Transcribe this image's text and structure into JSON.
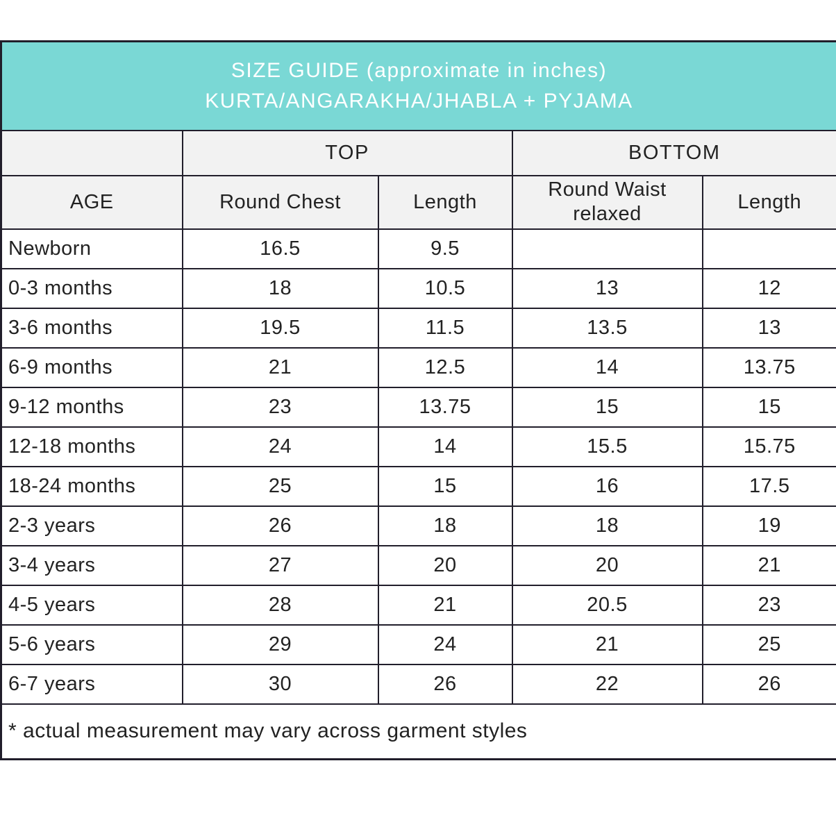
{
  "colors": {
    "header_teal": "#7ad8d5",
    "header_gray": "#f2f2f2",
    "border": "#211e2b",
    "title_text": "#ffffff",
    "body_text": "#222222"
  },
  "table": {
    "title_line1": "SIZE GUIDE (approximate in inches)",
    "title_line2": "KURTA/ANGARAKHA/JHABLA + PYJAMA",
    "group_headers": {
      "top": "TOP",
      "bottom": "BOTTOM"
    },
    "column_headers": {
      "age": "AGE",
      "round_chest": "Round Chest",
      "top_length": "Length",
      "round_waist": "Round Waist relaxed",
      "bottom_length": "Length"
    },
    "rows": [
      {
        "age": "Newborn",
        "round_chest": "16.5",
        "top_length": "9.5",
        "round_waist": "",
        "bottom_length": ""
      },
      {
        "age": "0-3 months",
        "round_chest": "18",
        "top_length": "10.5",
        "round_waist": "13",
        "bottom_length": "12"
      },
      {
        "age": "3-6 months",
        "round_chest": "19.5",
        "top_length": "11.5",
        "round_waist": "13.5",
        "bottom_length": "13"
      },
      {
        "age": "6-9 months",
        "round_chest": "21",
        "top_length": "12.5",
        "round_waist": "14",
        "bottom_length": "13.75"
      },
      {
        "age": "9-12 months",
        "round_chest": "23",
        "top_length": "13.75",
        "round_waist": "15",
        "bottom_length": "15"
      },
      {
        "age": "12-18 months",
        "round_chest": "24",
        "top_length": "14",
        "round_waist": "15.5",
        "bottom_length": "15.75"
      },
      {
        "age": "18-24 months",
        "round_chest": "25",
        "top_length": "15",
        "round_waist": "16",
        "bottom_length": "17.5"
      },
      {
        "age": "2-3 years",
        "round_chest": "26",
        "top_length": "18",
        "round_waist": "18",
        "bottom_length": "19"
      },
      {
        "age": "3-4 years",
        "round_chest": "27",
        "top_length": "20",
        "round_waist": "20",
        "bottom_length": "21"
      },
      {
        "age": "4-5 years",
        "round_chest": "28",
        "top_length": "21",
        "round_waist": "20.5",
        "bottom_length": "23"
      },
      {
        "age": "5-6 years",
        "round_chest": "29",
        "top_length": "24",
        "round_waist": "21",
        "bottom_length": "25"
      },
      {
        "age": "6-7 years",
        "round_chest": "30",
        "top_length": "26",
        "round_waist": "22",
        "bottom_length": "26"
      }
    ],
    "footnote": "* actual measurement may vary across garment styles"
  }
}
